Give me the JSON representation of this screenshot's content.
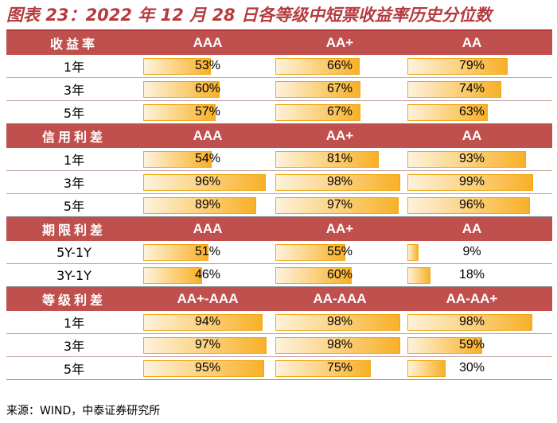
{
  "title": "图表 23：2022 年 12 月 28 日各等级中短票收益率历史分位数",
  "source": "来源：WIND，中泰证券研究所",
  "colors": {
    "header_bg": "#c0504d",
    "title": "#b53b3f",
    "bar_fill": "#f8b028"
  },
  "sections": [
    {
      "name": "收益率",
      "columns": [
        "AAA",
        "AA+",
        "AA"
      ],
      "rows": [
        {
          "label": "1年",
          "values": [
            "53%",
            "66%",
            "79%"
          ]
        },
        {
          "label": "3年",
          "values": [
            "60%",
            "67%",
            "74%"
          ]
        },
        {
          "label": "5年",
          "values": [
            "57%",
            "67%",
            "63%"
          ]
        }
      ]
    },
    {
      "name": "信用利差",
      "columns": [
        "AAA",
        "AA+",
        "AA"
      ],
      "rows": [
        {
          "label": "1年",
          "values": [
            "54%",
            "81%",
            "93%"
          ]
        },
        {
          "label": "3年",
          "values": [
            "96%",
            "98%",
            "99%"
          ]
        },
        {
          "label": "5年",
          "values": [
            "89%",
            "97%",
            "96%"
          ]
        }
      ]
    },
    {
      "name": "期限利差",
      "columns": [
        "AAA",
        "AA+",
        "AA"
      ],
      "rows": [
        {
          "label": "5Y-1Y",
          "values": [
            "51%",
            "55%",
            "9%"
          ]
        },
        {
          "label": "3Y-1Y",
          "values": [
            "46%",
            "60%",
            "18%"
          ]
        }
      ]
    },
    {
      "name": "等级利差",
      "columns": [
        "AA+-AAA",
        "AA-AAA",
        "AA-AA+"
      ],
      "rows": [
        {
          "label": "1年",
          "values": [
            "94%",
            "98%",
            "98%"
          ]
        },
        {
          "label": "3年",
          "values": [
            "97%",
            "98%",
            "59%"
          ]
        },
        {
          "label": "5年",
          "values": [
            "95%",
            "75%",
            "30%"
          ]
        }
      ]
    }
  ]
}
